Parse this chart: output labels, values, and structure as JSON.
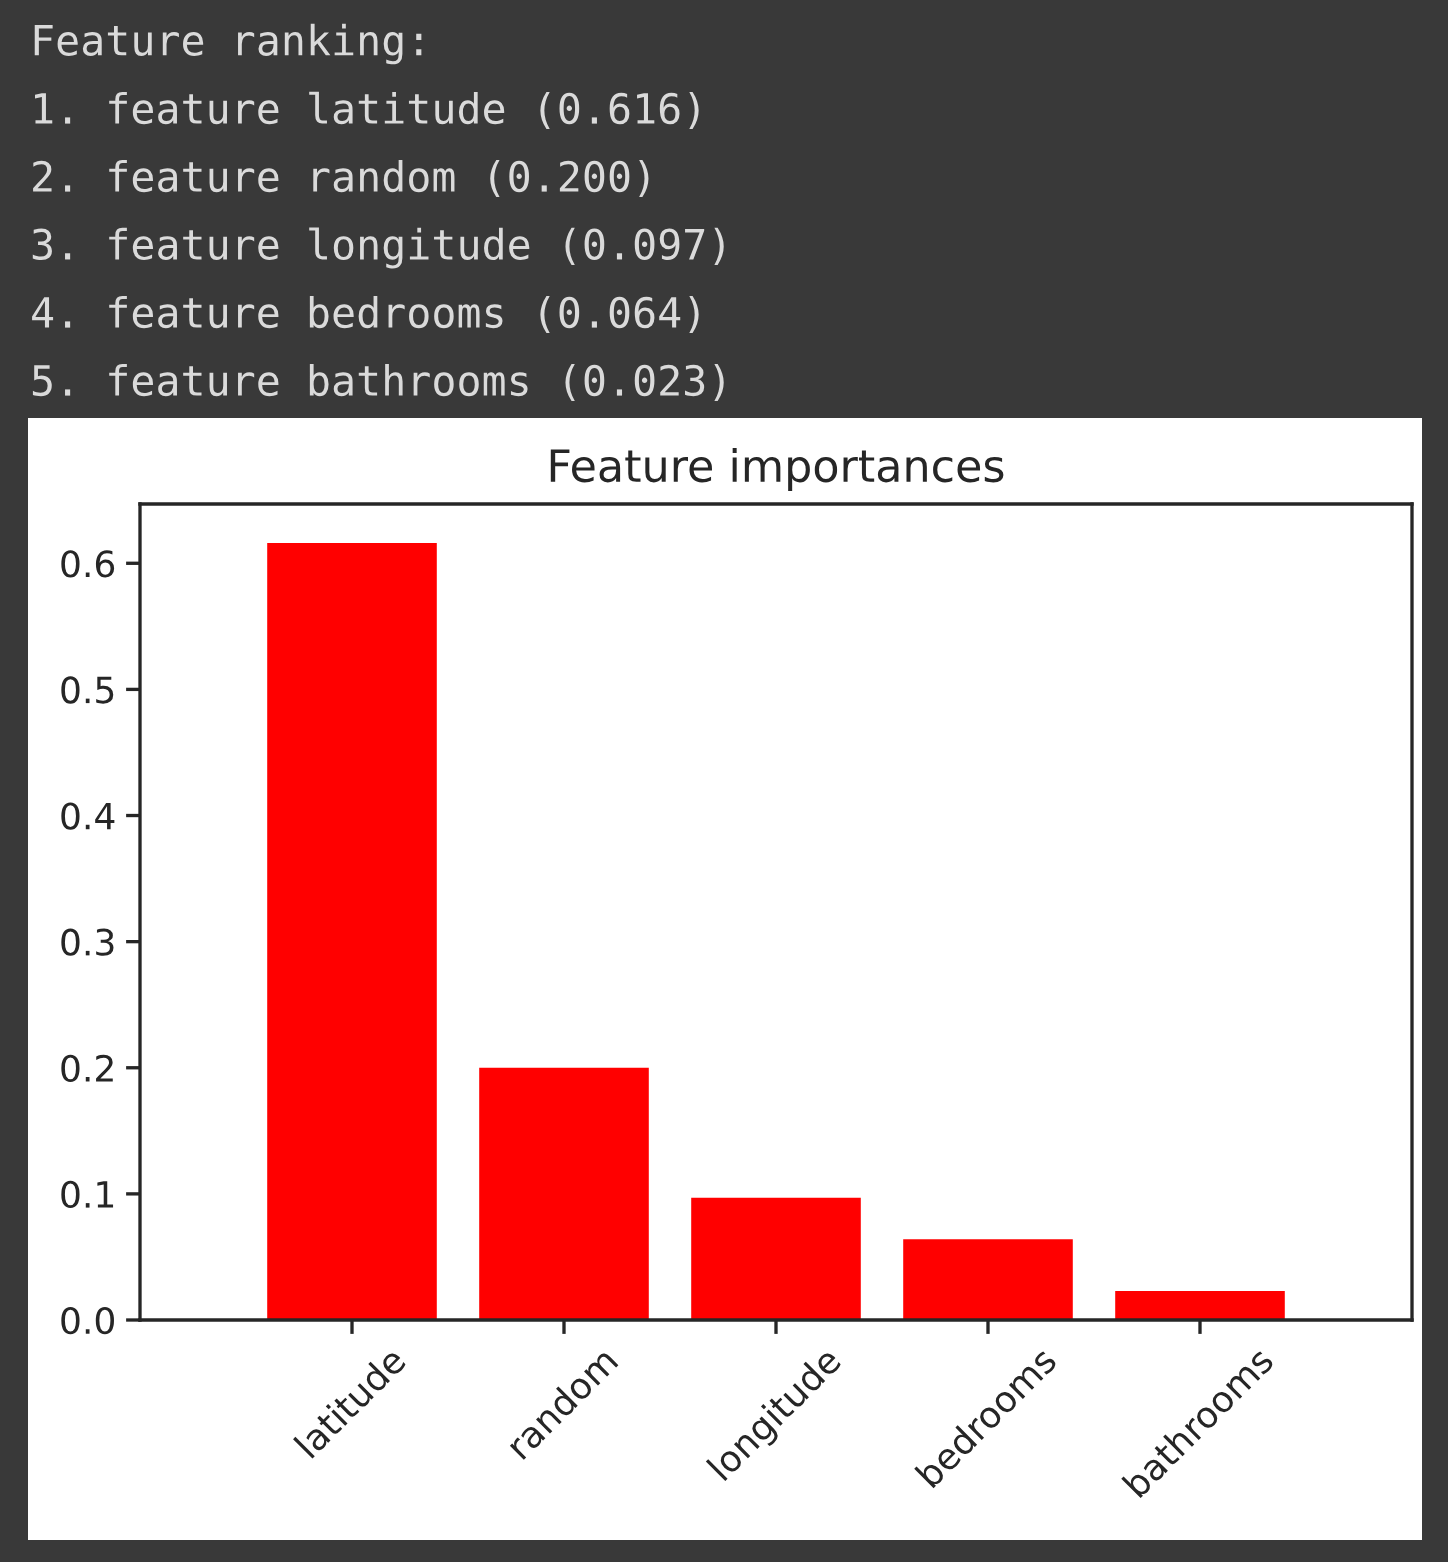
{
  "chart_data": {
    "type": "bar",
    "title": "Feature importances",
    "annotations": [
      "Feature ranking:",
      "1. feature latitude (0.616)",
      "2. feature random (0.200)",
      "3. feature longitude (0.097)",
      "4. feature bedrooms (0.064)",
      "5. feature bathrooms (0.023)"
    ],
    "categories": [
      "latitude",
      "random",
      "longitude",
      "bedrooms",
      "bathrooms"
    ],
    "values": [
      0.616,
      0.2,
      0.097,
      0.064,
      0.023
    ],
    "color": "#ff0000",
    "ylim": [
      0,
      0.647
    ],
    "yticks": [
      {
        "value": 0,
        "label": "0.0"
      },
      0.1,
      0.2,
      0.3,
      0.4,
      0.5,
      0.6
    ]
  }
}
